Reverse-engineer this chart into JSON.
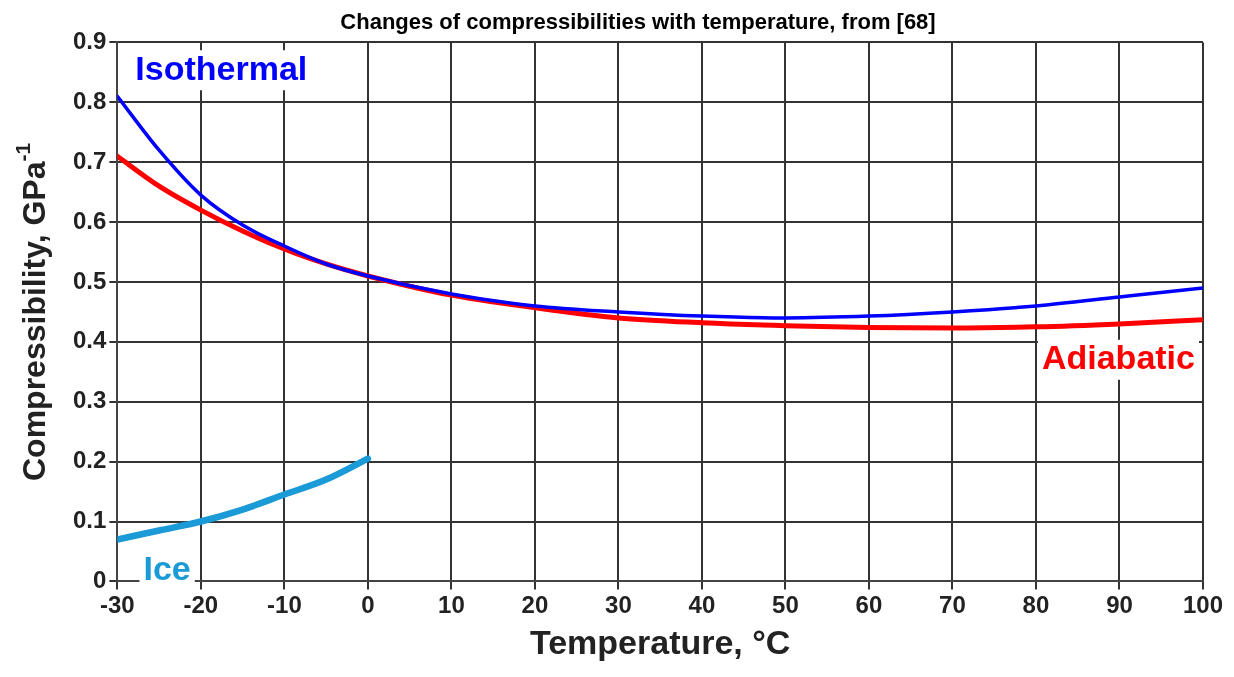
{
  "chart_data": {
    "type": "line",
    "title": "Changes of compressibilities with temperature, from [68]",
    "xlabel": "Temperature, °C",
    "ylabel": "Compressibility, GPa$^{-1}$",
    "xlim": [
      -30,
      100
    ],
    "xticks": [
      -30,
      -20,
      -10,
      0,
      10,
      20,
      30,
      40,
      50,
      60,
      70,
      80,
      90,
      100
    ],
    "ylim": [
      0,
      0.9
    ],
    "yticks": [
      0,
      0.1,
      0.2,
      0.3,
      0.4,
      0.5,
      0.6,
      0.7,
      0.8,
      0.9
    ],
    "grid": true,
    "legend": false,
    "marker": "none",
    "line_style": "solid",
    "series": [
      {
        "name": "Isothermal",
        "color": "#0000ff",
        "x": [
          -30,
          -25,
          -20,
          -15,
          -10,
          -5,
          0,
          10,
          20,
          30,
          40,
          50,
          60,
          70,
          80,
          90,
          100
        ],
        "values": [
          0.81,
          0.72,
          0.645,
          0.595,
          0.56,
          0.53,
          0.51,
          0.48,
          0.46,
          0.45,
          0.443,
          0.44,
          0.443,
          0.45,
          0.46,
          0.475,
          0.49
        ]
      },
      {
        "name": "Adiabatic",
        "color": "#ff0000",
        "x": [
          -30,
          -25,
          -20,
          -15,
          -10,
          -5,
          0,
          10,
          20,
          30,
          40,
          50,
          60,
          70,
          80,
          90,
          100
        ],
        "values": [
          0.71,
          0.66,
          0.62,
          0.585,
          0.555,
          0.53,
          0.51,
          0.478,
          0.457,
          0.44,
          0.432,
          0.427,
          0.424,
          0.423,
          0.425,
          0.43,
          0.437
        ]
      },
      {
        "name": "Ice",
        "color": "#1a9ad6",
        "x": [
          -30,
          -25,
          -20,
          -15,
          -10,
          -5,
          0
        ],
        "values": [
          0.07,
          0.085,
          0.1,
          0.12,
          0.145,
          0.17,
          0.205
        ]
      }
    ]
  }
}
